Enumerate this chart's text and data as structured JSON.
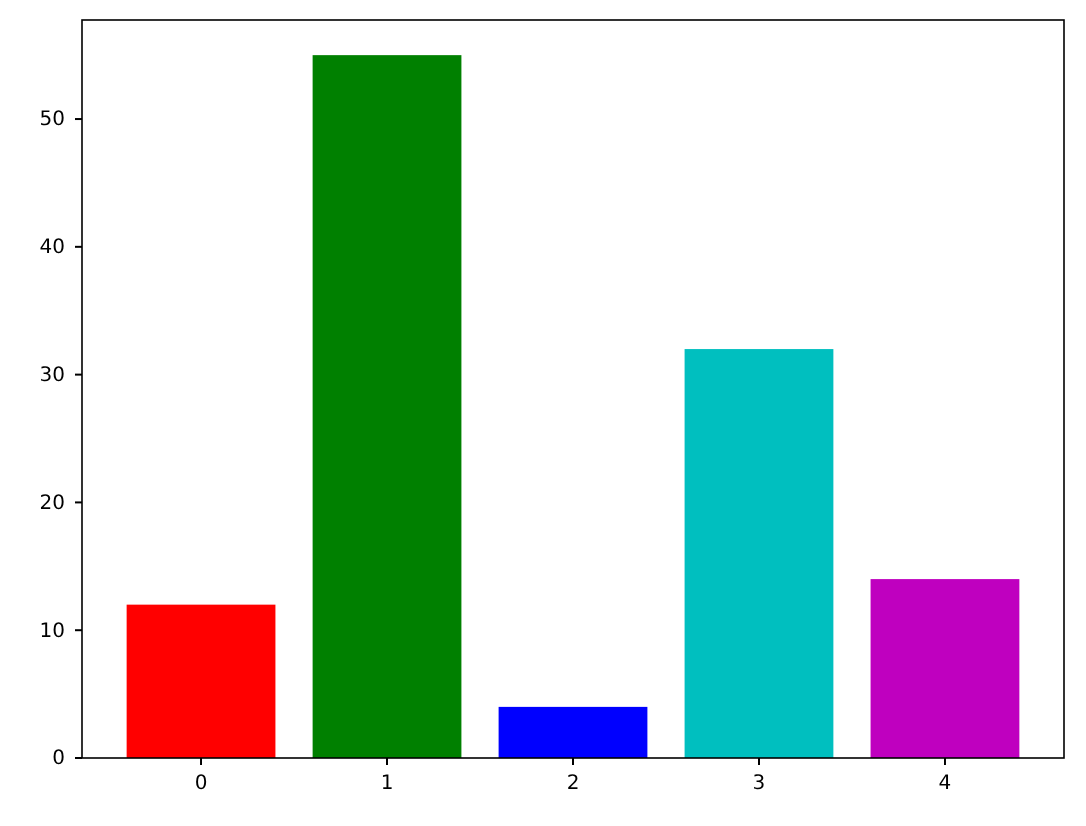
{
  "chart_data": {
    "type": "bar",
    "categories": [
      "0",
      "1",
      "2",
      "3",
      "4"
    ],
    "values": [
      12,
      55,
      4,
      32,
      14
    ],
    "colors": [
      "#ff0000",
      "#008000",
      "#0000ff",
      "#00bfbf",
      "#bf00bf"
    ],
    "ylim": [
      0,
      57.75
    ],
    "yticks": [
      0,
      10,
      20,
      30,
      40,
      50
    ],
    "grid": false
  }
}
